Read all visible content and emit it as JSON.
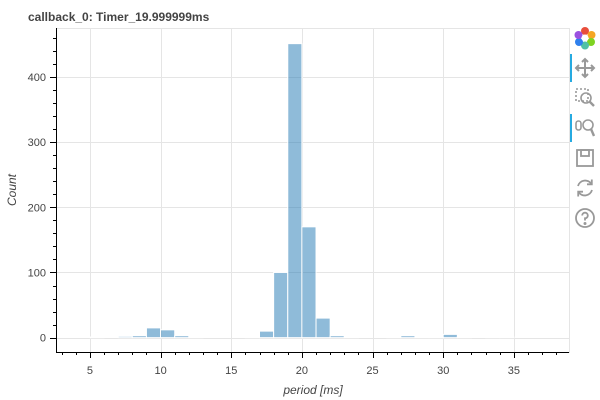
{
  "chart_data": {
    "type": "bar",
    "title": "callback_0: Timer_19.999999ms",
    "xlabel": "period [ms]",
    "ylabel": "Count",
    "xlim": [
      2.6,
      38.9
    ],
    "ylim": [
      -22,
      475
    ],
    "x_ticks": [
      5,
      10,
      15,
      20,
      25,
      30,
      35
    ],
    "y_ticks": [
      0,
      100,
      200,
      300,
      400
    ],
    "bin_width": 1,
    "bins": [
      {
        "x0": 5,
        "count": 1
      },
      {
        "x0": 7,
        "count": 2
      },
      {
        "x0": 8,
        "count": 3
      },
      {
        "x0": 9,
        "count": 15
      },
      {
        "x0": 10,
        "count": 12
      },
      {
        "x0": 11,
        "count": 3
      },
      {
        "x0": 12,
        "count": 1
      },
      {
        "x0": 16,
        "count": 1
      },
      {
        "x0": 17,
        "count": 10
      },
      {
        "x0": 18,
        "count": 100
      },
      {
        "x0": 19,
        "count": 451
      },
      {
        "x0": 20,
        "count": 170
      },
      {
        "x0": 21,
        "count": 30
      },
      {
        "x0": 22,
        "count": 3
      },
      {
        "x0": 23,
        "count": 1
      },
      {
        "x0": 26,
        "count": 1
      },
      {
        "x0": 27,
        "count": 3
      },
      {
        "x0": 28,
        "count": 1
      },
      {
        "x0": 29,
        "count": 1
      },
      {
        "x0": 30,
        "count": 5
      },
      {
        "x0": 31,
        "count": 1
      },
      {
        "x0": 33,
        "count": 1
      },
      {
        "x0": 34,
        "count": 1
      }
    ],
    "grid": true,
    "bar_color": "#1f77b4",
    "bar_alpha": 0.5
  },
  "toolbar": {
    "tools": [
      {
        "name": "bokeh-logo-icon"
      },
      {
        "name": "pan-tool-icon",
        "active": true
      },
      {
        "name": "box-zoom-tool-icon",
        "active": false
      },
      {
        "name": "wheel-zoom-tool-icon",
        "active": true
      },
      {
        "name": "save-tool-icon"
      },
      {
        "name": "reset-tool-icon"
      },
      {
        "name": "help-tool-icon"
      }
    ]
  }
}
